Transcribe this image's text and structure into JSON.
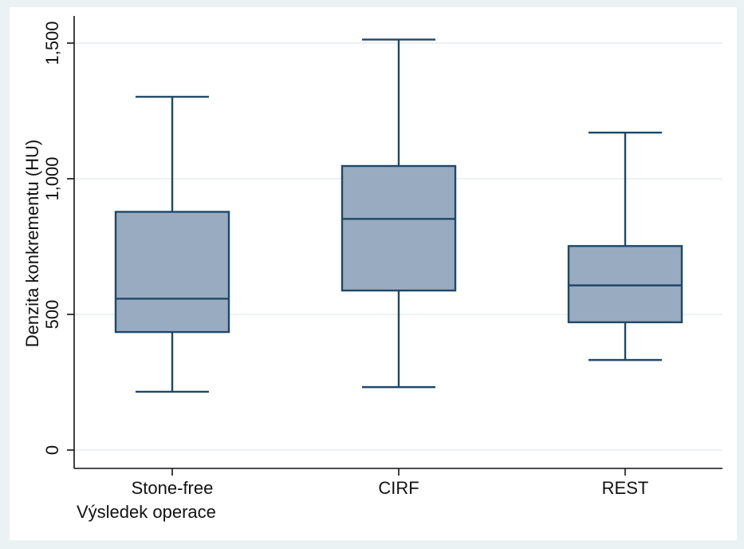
{
  "chart_data": {
    "type": "boxplot",
    "title": "",
    "xlabel": "Výsledek operace",
    "ylabel": "Denzita konkrementu (HU)",
    "ylim": [
      0,
      1500
    ],
    "yticks": [
      0,
      500,
      1000,
      1500
    ],
    "ytick_labels": [
      "0",
      "500",
      "1,000",
      "1,500"
    ],
    "grid": true,
    "categories": [
      "Stone-free",
      "CIRF",
      "REST"
    ],
    "boxes": [
      {
        "category": "Stone-free",
        "whisker_low": 215,
        "q1": 435,
        "median": 558,
        "q3": 878,
        "whisker_high": 1302
      },
      {
        "category": "CIRF",
        "whisker_low": 232,
        "q1": 588,
        "median": 852,
        "q3": 1047,
        "whisker_high": 1513
      },
      {
        "category": "REST",
        "whisker_low": 332,
        "q1": 471,
        "median": 607,
        "q3": 752,
        "whisker_high": 1170
      }
    ],
    "colors": {
      "box_fill": "#99abc0",
      "box_stroke": "#1f4868",
      "whisker": "#1f4868",
      "grid": "#e6eef0",
      "axis": "#111111",
      "outer_background": "#eaf2f3",
      "plot_background": "#ffffff"
    }
  }
}
